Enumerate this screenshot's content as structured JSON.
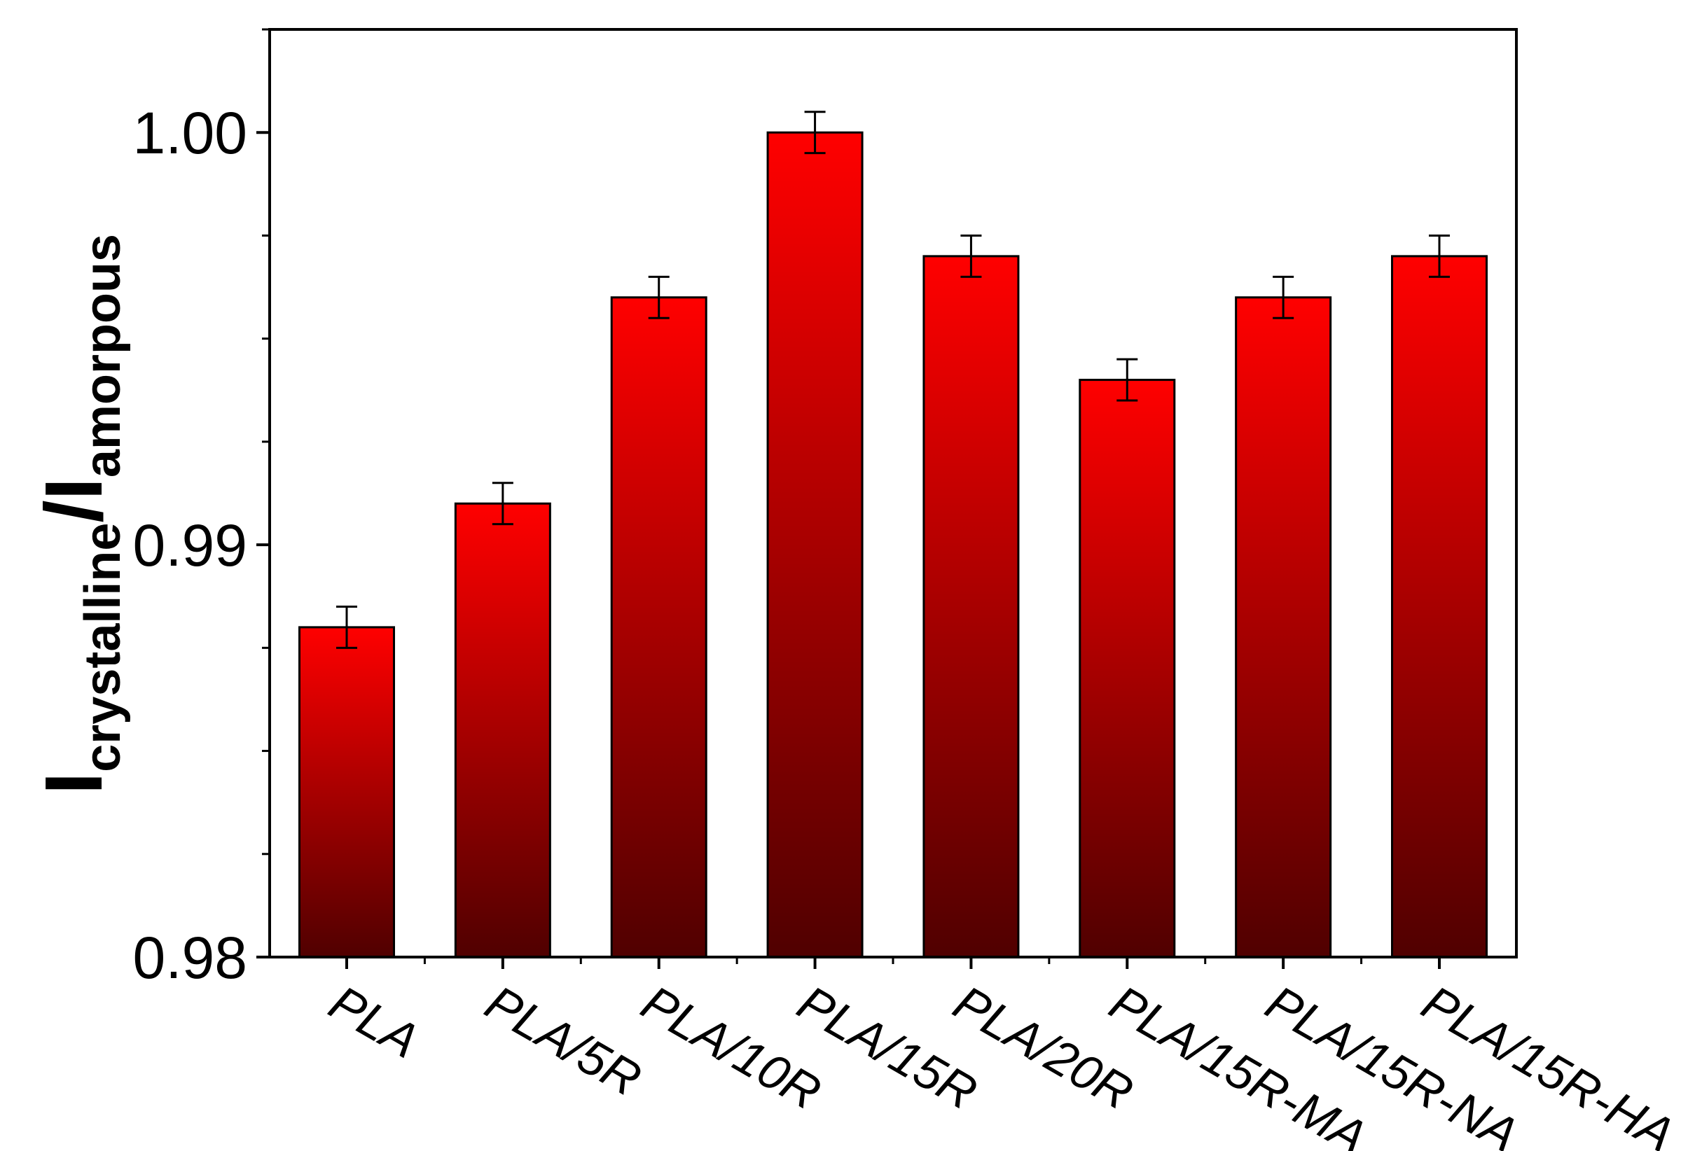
{
  "chart_data": {
    "type": "bar",
    "categories": [
      "PLA",
      "PLA/5R",
      "PLA/10R",
      "PLA/15R",
      "PLA/20R",
      "PLA/15R-MA",
      "PLA/15R-NA",
      "PLA/15R-HA"
    ],
    "values": [
      0.988,
      0.991,
      0.996,
      1.0,
      0.997,
      0.994,
      0.996,
      0.997
    ],
    "errors": [
      0.0005,
      0.0005,
      0.0005,
      0.0005,
      0.0005,
      0.0005,
      0.0005,
      0.0005
    ],
    "ylim": [
      0.98,
      1.0025
    ],
    "yticks": [
      0.98,
      0.99,
      1.0
    ],
    "ytick_labels": [
      "0.98",
      "0.99",
      "1.00"
    ],
    "ylabel": {
      "main": "I",
      "sub1": "crystalline",
      "sep": "/I",
      "sub2": "amorpous"
    },
    "xlabel": "",
    "bar_color_top": "#ff0000",
    "bar_color_bottom": "#500000",
    "grid": false
  }
}
